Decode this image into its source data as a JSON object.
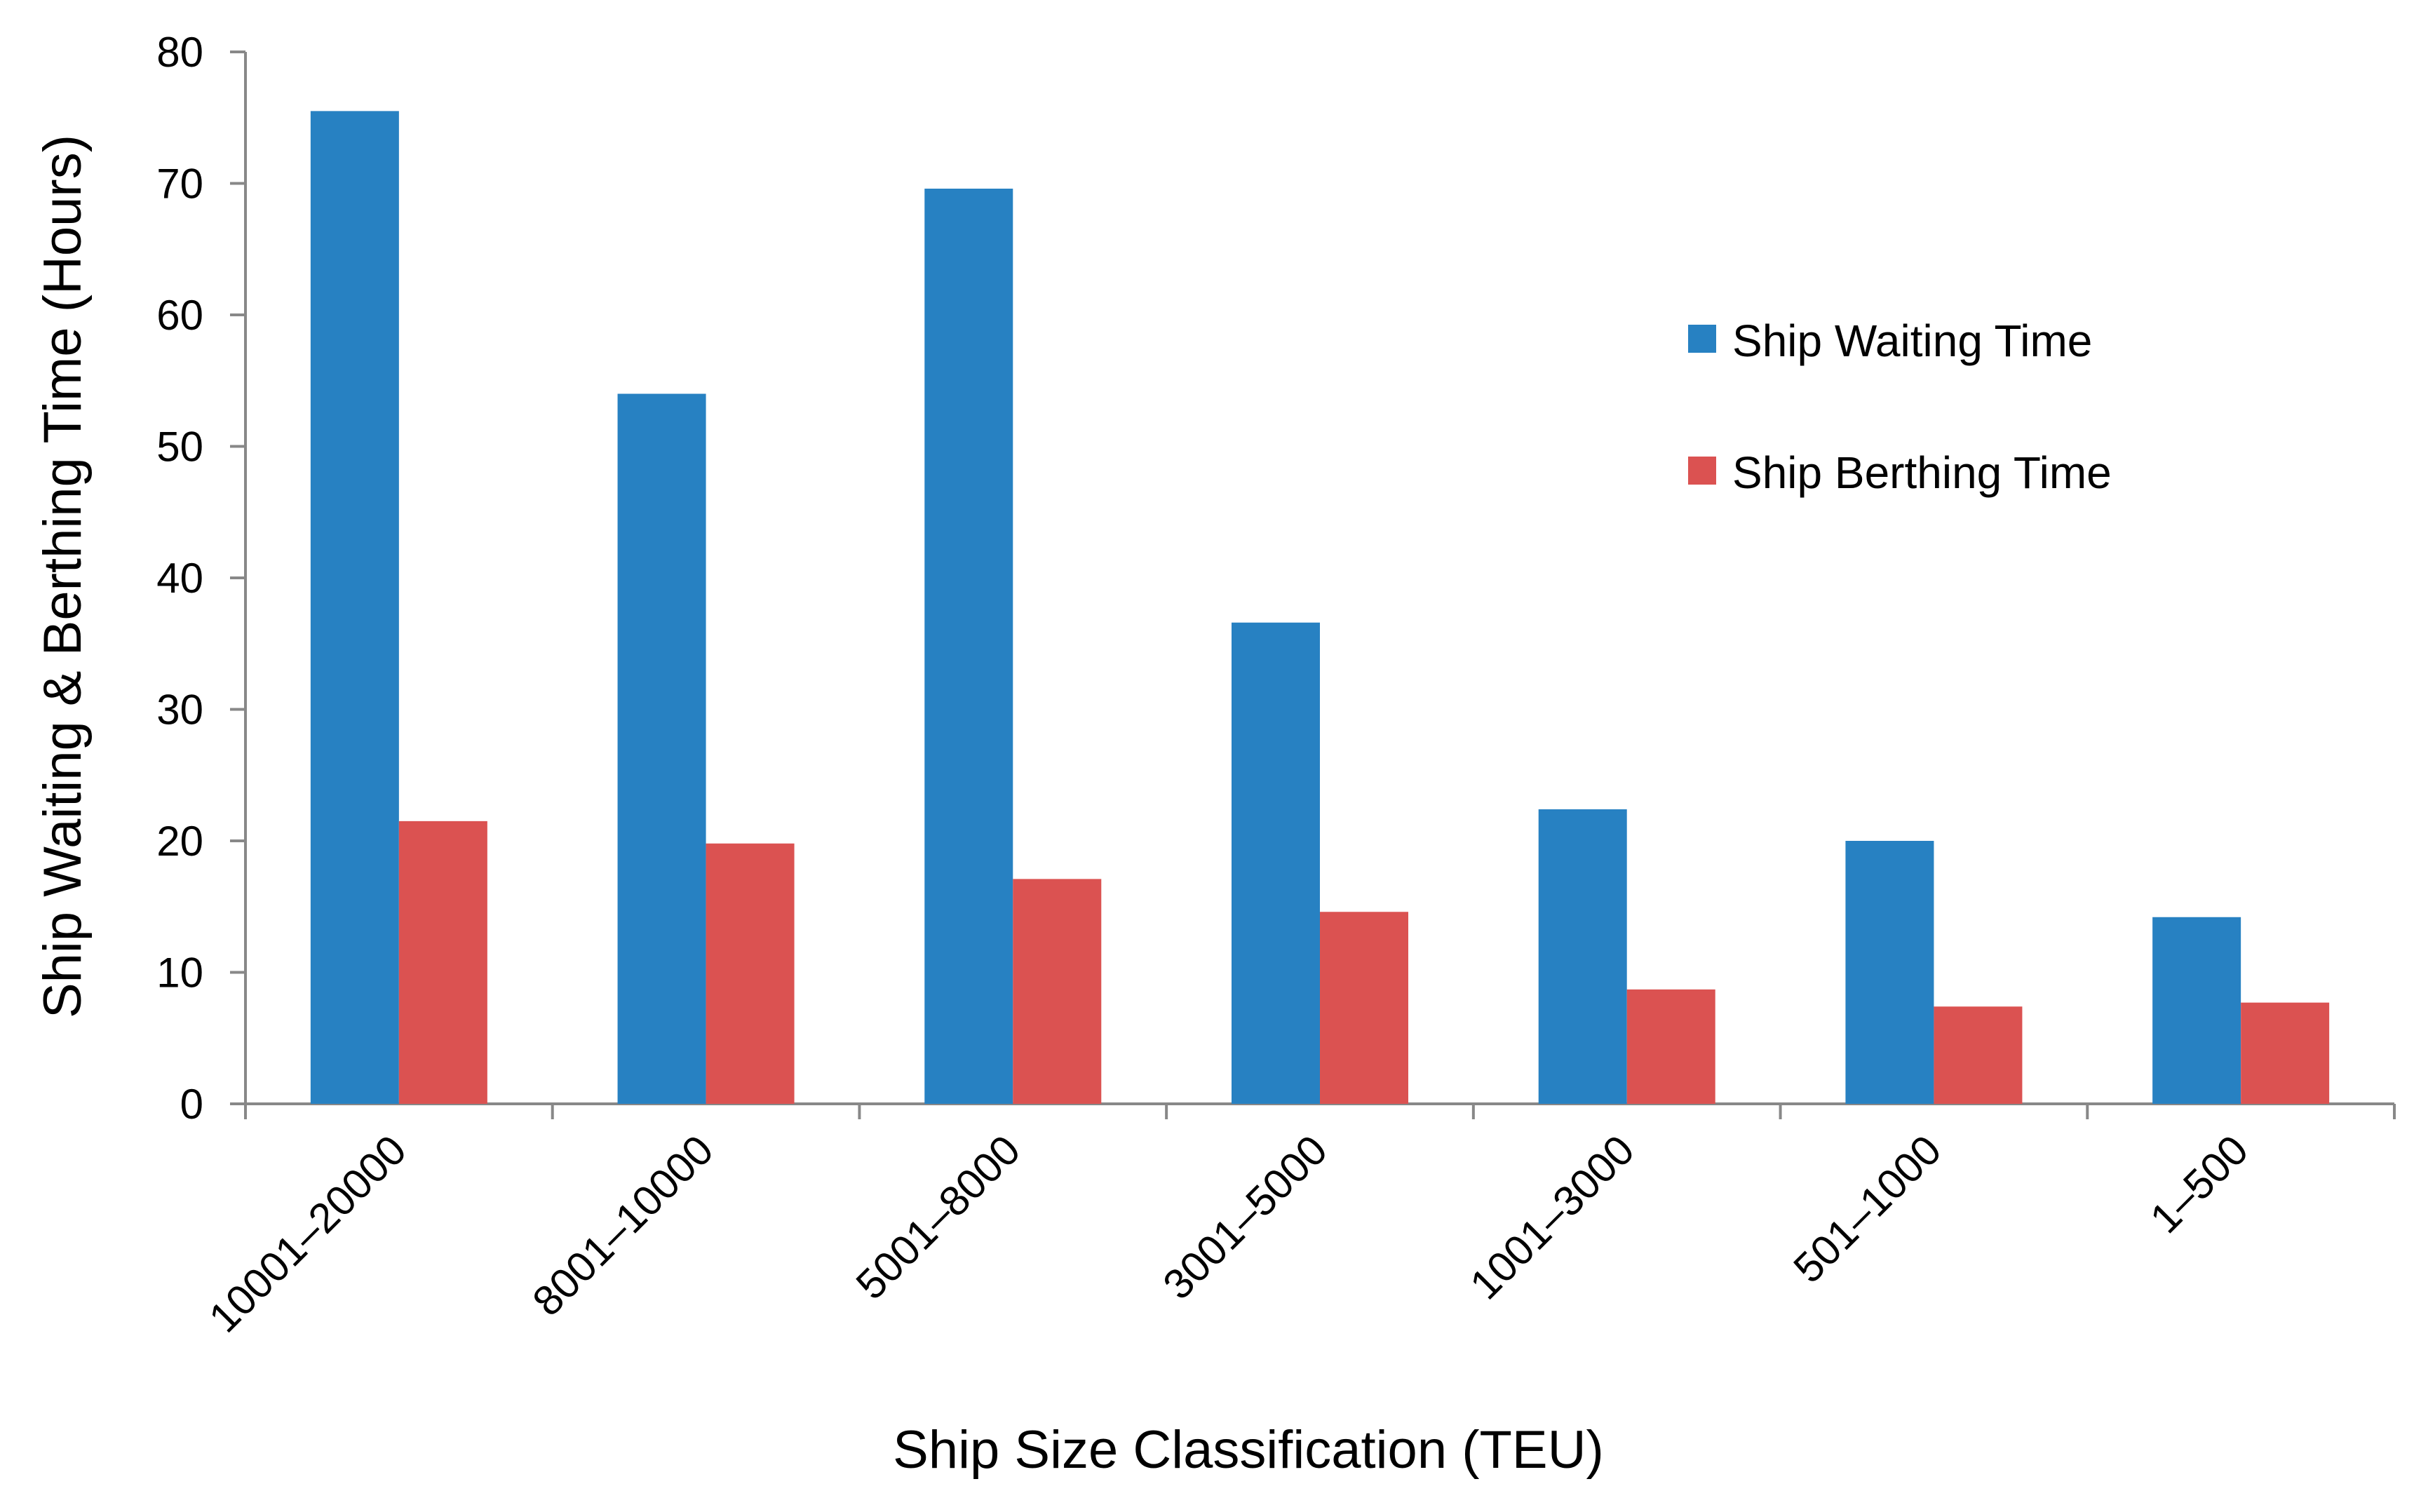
{
  "chart_data": {
    "type": "bar",
    "title": "",
    "xlabel": "Ship Size Classification (TEU)",
    "ylabel": "Ship Waiting & Berthing Time (Hours)",
    "categories": [
      "10001–20000",
      "8001–10000",
      "5001–8000",
      "3001–5000",
      "1001–3000",
      "501–1000",
      "1–500"
    ],
    "series": [
      {
        "name": "Ship Waiting Time",
        "color": "#2781C2",
        "values": [
          75.5,
          54.0,
          69.6,
          36.6,
          22.4,
          20.0,
          14.2
        ]
      },
      {
        "name": "Ship Berthing Time",
        "color": "#DB5251",
        "values": [
          21.5,
          19.8,
          17.1,
          14.6,
          8.7,
          7.4,
          7.7
        ]
      }
    ],
    "ylim": [
      0,
      80
    ],
    "yticks": [
      0,
      10,
      20,
      30,
      40,
      50,
      60,
      70,
      80
    ],
    "grid": false,
    "legend_position": "right"
  }
}
